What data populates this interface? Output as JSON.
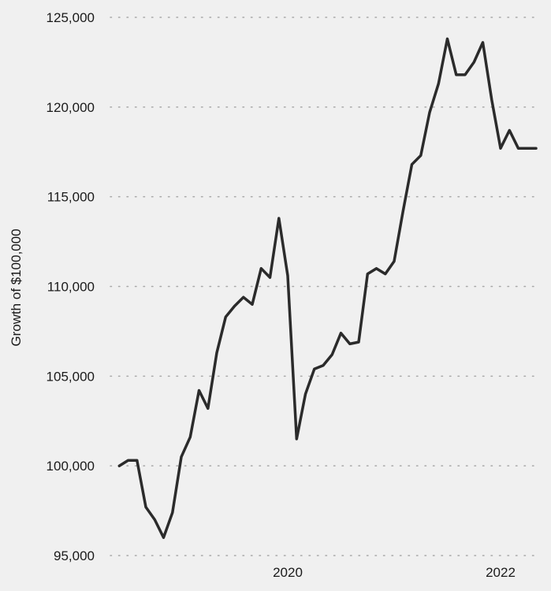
{
  "chart_data": {
    "type": "line",
    "title": "",
    "xlabel": "",
    "ylabel": "Growth of $100,000",
    "ylim": [
      95000,
      125000
    ],
    "yticks": [
      95000,
      100000,
      105000,
      110000,
      115000,
      120000,
      125000
    ],
    "ytick_labels": [
      "95,000",
      "100,000",
      "105,000",
      "110,000",
      "115,000",
      "120,000",
      "125,000"
    ],
    "xlim": [
      "2018-05",
      "2022-05"
    ],
    "xticks": [
      "2020-01",
      "2022-01"
    ],
    "xtick_labels": [
      "2020",
      "2022"
    ],
    "grid": {
      "y": true,
      "x": false,
      "style": "dotted"
    },
    "line_color": "#2b2b2b",
    "series": [
      {
        "x": [
          "2018-06",
          "2018-07",
          "2018-08",
          "2018-09",
          "2018-10",
          "2018-11",
          "2018-12",
          "2019-01",
          "2019-02",
          "2019-03",
          "2019-04",
          "2019-05",
          "2019-06",
          "2019-07",
          "2019-08",
          "2019-09",
          "2019-10",
          "2019-11",
          "2019-12",
          "2020-01",
          "2020-02",
          "2020-03",
          "2020-04",
          "2020-05",
          "2020-06",
          "2020-07",
          "2020-08",
          "2020-09",
          "2020-10",
          "2020-11",
          "2020-12",
          "2021-01",
          "2021-02",
          "2021-03",
          "2021-04",
          "2021-05",
          "2021-06",
          "2021-07",
          "2021-08",
          "2021-09",
          "2021-10",
          "2021-11",
          "2021-12",
          "2022-01",
          "2022-02",
          "2022-03",
          "2022-04",
          "2022-05"
        ],
        "values": [
          100000,
          100300,
          100300,
          97700,
          97000,
          96000,
          97400,
          100500,
          101600,
          104200,
          103200,
          106300,
          108300,
          108900,
          109400,
          109000,
          111000,
          110500,
          113800,
          110600,
          101500,
          104000,
          105400,
          105600,
          106200,
          107400,
          106800,
          106900,
          110700,
          111000,
          110700,
          111400,
          114200,
          116800,
          117300,
          119700,
          121300,
          123800,
          121800,
          121800,
          122500,
          123600,
          120400,
          117700,
          118700,
          117700,
          117700,
          117700
        ]
      }
    ]
  }
}
